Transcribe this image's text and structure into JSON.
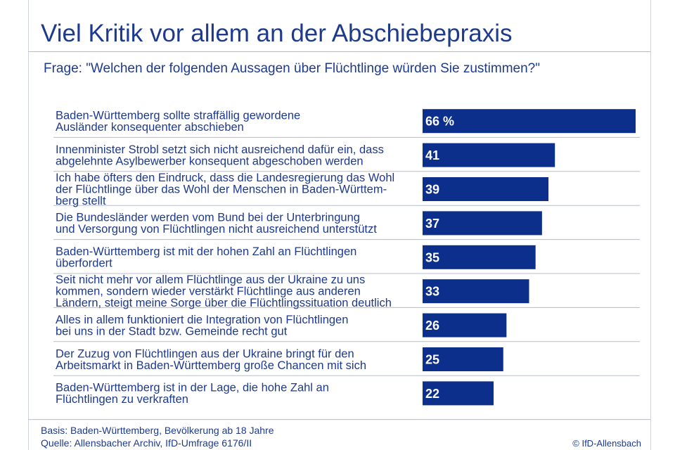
{
  "title": "Viel Kritik vor allem an der Abschiebepraxis",
  "question": "Frage: \"Welchen der folgenden Aussagen über Flüchtlinge würden Sie zustimmen?\"",
  "footer": {
    "basis": "Basis: Baden-Württemberg, Bevölkerung ab 18 Jahre",
    "source": "Quelle: Allensbacher Archiv, IfD-Umfrage 6176/II",
    "copyright": "© IfD-Allensbach"
  },
  "colors": {
    "bar": "#0d2f8c",
    "text": "#1d3a8d",
    "rule": "#b9bdc9"
  },
  "chart_data": {
    "type": "bar",
    "orientation": "horizontal",
    "categories": [
      "Baden-Württemberg sollte straffällig gewordene Ausländer konsequenter abschieben",
      "Innenminister Strobl setzt sich nicht ausreichend dafür ein, dass abgelehnte Asylbewerber konsequent abgeschoben werden",
      "Ich habe öfters den Eindruck, dass die Landesregierung das Wohl der Flüchtlinge über das Wohl der Menschen in Baden-Württemberg stellt",
      "Die Bundesländer werden vom Bund bei der Unterbringung und Versorgung von Flüchtlingen nicht ausreichend unterstützt",
      "Baden-Württemberg ist mit der hohen Zahl an Flüchtlingen überfordert",
      "Seit nicht mehr vor allem Flüchtlinge aus der Ukraine zu uns kommen, sondern wieder verstärkt Flüchtlinge aus anderen Ländern, steigt meine Sorge über die Flüchtlingssituation deutlich",
      "Alles in allem funktioniert die Integration von Flüchtlingen bei uns in der Stadt bzw. Gemeinde recht gut",
      "Der Zuzug von Flüchtlingen aus der Ukraine bringt für den Arbeitsmarkt in Baden-Württemberg große Chancen mit sich",
      "Baden-Württemberg ist in der Lage, die hohe Zahl an Flüchtlingen zu verkraften"
    ],
    "category_lines": [
      [
        "Baden-Württemberg sollte straffällig gewordene",
        "Ausländer konsequenter abschieben"
      ],
      [
        "Innenminister Strobl setzt sich nicht ausreichend dafür ein, dass",
        "abgelehnte Asylbewerber konsequent abgeschoben werden"
      ],
      [
        "Ich habe öfters den Eindruck, dass die Landesregierung das Wohl",
        "der Flüchtlinge über das Wohl der Menschen in Baden-Württem-",
        "berg stellt"
      ],
      [
        "Die Bundesländer werden vom Bund bei der Unterbringung",
        "und Versorgung von Flüchtlingen nicht ausreichend unterstützt"
      ],
      [
        "Baden-Württemberg ist mit der hohen Zahl an Flüchtlingen",
        "überfordert"
      ],
      [
        "Seit nicht mehr vor allem Flüchtlinge aus der Ukraine zu uns",
        "kommen, sondern wieder verstärkt Flüchtlinge aus anderen",
        "Ländern, steigt meine Sorge über die Flüchtlingssituation deutlich"
      ],
      [
        "Alles in allem funktioniert die Integration von Flüchtlingen",
        "bei uns in der Stadt bzw. Gemeinde recht gut"
      ],
      [
        "Der Zuzug von Flüchtlingen aus der Ukraine bringt für den",
        "Arbeitsmarkt in Baden-Württemberg große Chancen mit sich"
      ],
      [
        "Baden-Württemberg ist in der Lage, die hohe Zahl an",
        "Flüchtlingen zu verkraften"
      ]
    ],
    "values": [
      66,
      41,
      39,
      37,
      35,
      33,
      26,
      25,
      22
    ],
    "value_labels": [
      "66 %",
      "41",
      "39",
      "37",
      "35",
      "33",
      "26",
      "25",
      "22"
    ],
    "unit": "%",
    "xlim": [
      0,
      66
    ],
    "grid": false,
    "legend": "none"
  }
}
